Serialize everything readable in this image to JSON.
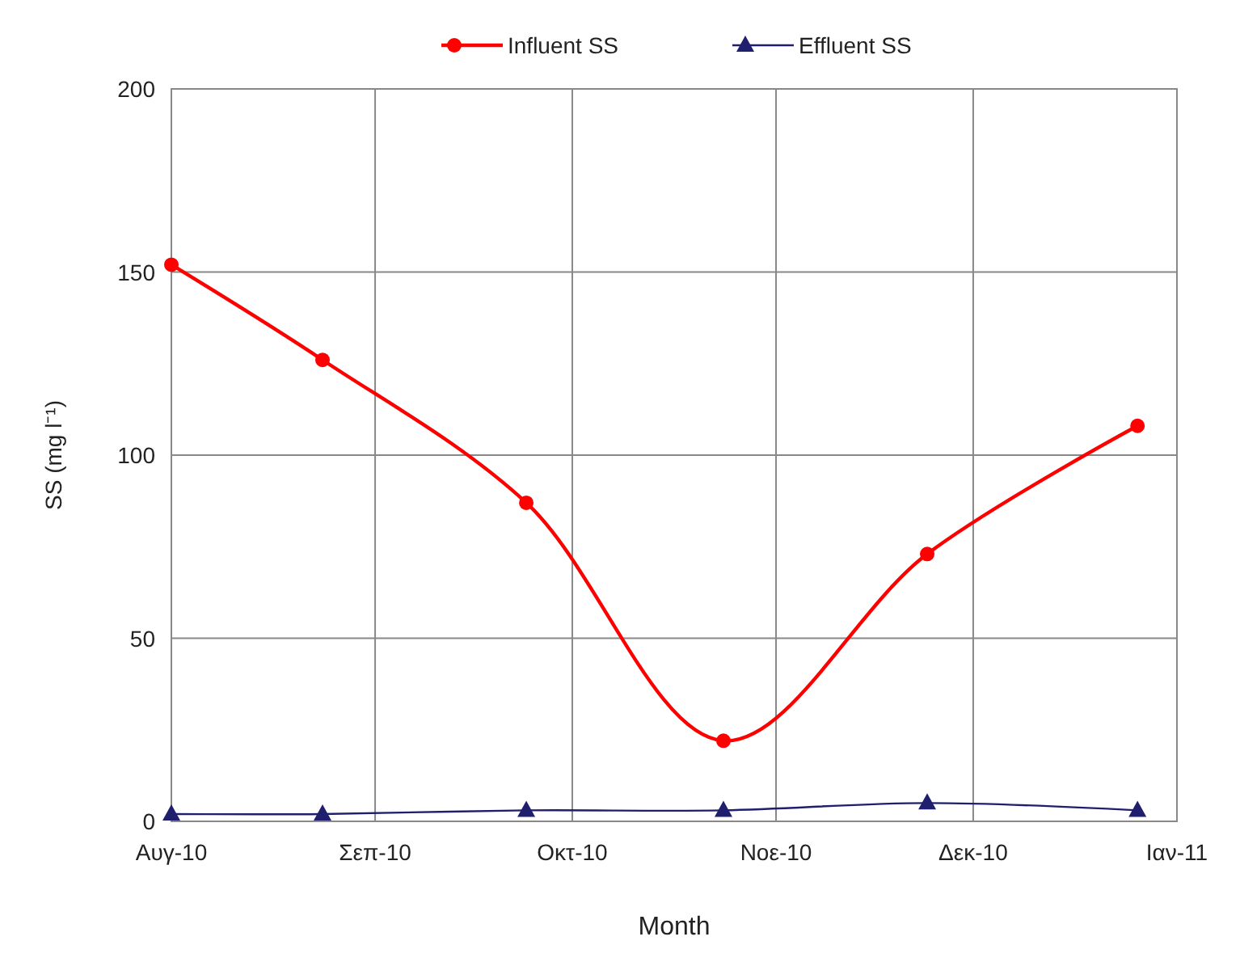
{
  "chart_data": {
    "type": "line",
    "xlabel": "Month",
    "ylabel": "SS (mg l⁻¹)",
    "xlim": [
      "2010-08-01",
      "2011-01-01"
    ],
    "xticks": [
      {
        "value": "2010-08-01",
        "label": "Αυγ-10"
      },
      {
        "value": "2010-09-01",
        "label": "Σεπ-10"
      },
      {
        "value": "2010-10-01",
        "label": "Οκτ-10"
      },
      {
        "value": "2010-11-01",
        "label": "Νοε-10"
      },
      {
        "value": "2010-12-01",
        "label": "Δεκ-10"
      },
      {
        "value": "2011-01-01",
        "label": "Ιαν-11"
      }
    ],
    "ylim": [
      0,
      200
    ],
    "yticks": [
      0,
      50,
      100,
      150,
      200
    ],
    "grid": true,
    "legend": "top",
    "series": [
      {
        "name": "Influent SS",
        "color": "#ff0000",
        "marker": "circle",
        "x": [
          "2010-08-01",
          "2010-08-24",
          "2010-09-24",
          "2010-10-24",
          "2010-11-24",
          "2010-12-26"
        ],
        "values": [
          152,
          126,
          87,
          22,
          73,
          108
        ]
      },
      {
        "name": "Effluent SS",
        "color": "#1f1f6e",
        "marker": "triangle",
        "x": [
          "2010-08-01",
          "2010-08-24",
          "2010-09-24",
          "2010-10-24",
          "2010-11-24",
          "2010-12-26"
        ],
        "values": [
          2,
          2,
          3,
          3,
          5,
          3
        ]
      }
    ]
  }
}
